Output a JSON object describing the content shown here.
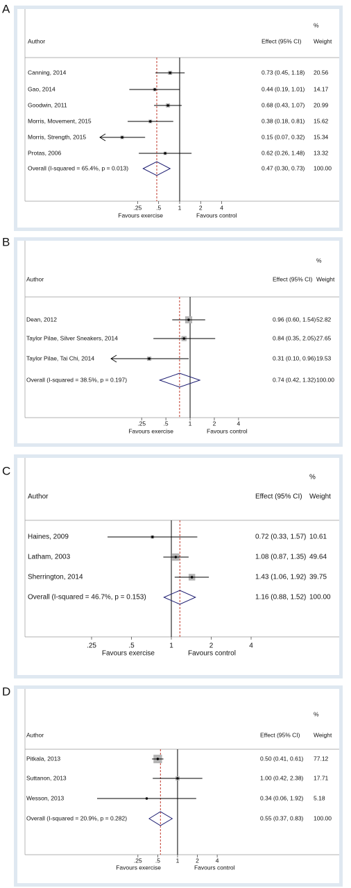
{
  "chart_data": [
    {
      "type": "forest",
      "panel": "A",
      "weight_header": "%",
      "weight_title": "Weight",
      "author_header": "Author",
      "effect_header": "Effect (95% CI)",
      "x_label_left": "Favours exercise",
      "x_label_right": "Favours control",
      "categories": [
        "Canning, 2014",
        "Gao, 2014",
        "Goodwin, 2011",
        "Morris, Movement, 2015",
        "Morris, Strength, 2015",
        "Protas, 2006"
      ],
      "values": [
        0.73,
        0.44,
        0.68,
        0.38,
        0.15,
        0.62
      ],
      "ci_low": [
        0.45,
        0.19,
        0.43,
        0.18,
        0.07,
        0.26
      ],
      "ci_high": [
        1.18,
        1.01,
        1.07,
        0.81,
        0.32,
        1.48
      ],
      "value_labels": [
        "0.73 (0.45, 1.18)",
        "0.44 (0.19, 1.01)",
        "0.68 (0.43, 1.07)",
        "0.38 (0.18, 0.81)",
        "0.15 (0.07, 0.32)",
        "0.62 (0.26, 1.48)"
      ],
      "weights": [
        20.56,
        14.17,
        20.99,
        15.62,
        15.34,
        13.32
      ],
      "overall_label": "Overall  (I-squared = 65.4%, p = 0.013)",
      "overall_value": 0.47,
      "overall_ci_low": 0.3,
      "overall_ci_high": 0.73,
      "overall_value_label": "0.47 (0.30, 0.73)",
      "overall_weight": 100,
      "overall_weight_label": "100.00",
      "log_x": true,
      "xlim": [
        0.072,
        13.9
      ],
      "null_line": 1,
      "xticks": [
        {
          "value": 0.25,
          "label": ".25"
        },
        {
          "value": 0.5,
          "label": ".5"
        },
        1,
        2,
        4
      ],
      "color": "#b4b4b4",
      "ci_color": "#000000",
      "diamond_color": "#1b1b70",
      "ref_line_color": "#c0392b"
    },
    {
      "type": "forest",
      "panel": "B",
      "weight_header": "%",
      "weight_title": "Weight",
      "author_header": "Author",
      "effect_header": "Effect (95% CI)",
      "x_label_left": "Favours exercise",
      "x_label_right": "Favours control",
      "categories": [
        "Dean, 2012",
        "Taylor Pilae, Silver Sneakers, 2014",
        "Taylor Pilae, Tai Chi, 2014"
      ],
      "values": [
        0.96,
        0.84,
        0.31
      ],
      "ci_low": [
        0.6,
        0.35,
        0.1
      ],
      "ci_high": [
        1.54,
        2.05,
        0.96
      ],
      "value_labels": [
        "0.96 (0.60, 1.54)",
        "0.84 (0.35, 2.05)",
        "0.31 (0.10, 0.96)"
      ],
      "weights": [
        52.82,
        27.65,
        19.53
      ],
      "overall_label": "Overall  (I-squared = 38.5%, p = 0.197)",
      "overall_value": 0.74,
      "overall_ci_low": 0.42,
      "overall_ci_high": 1.32,
      "overall_value_label": "0.74 (0.42, 1.32)",
      "overall_weight": 100,
      "overall_weight_label": "100.00",
      "log_x": true,
      "xlim": [
        0.104,
        9.6
      ],
      "null_line": 1,
      "xticks": [
        {
          "value": 0.25,
          "label": ".25"
        },
        {
          "value": 0.5,
          "label": ".5"
        },
        1,
        2,
        4
      ],
      "color": "#b4b4b4",
      "ci_color": "#000000",
      "diamond_color": "#1b1b70",
      "ref_line_color": "#c0392b"
    },
    {
      "type": "forest",
      "panel": "C",
      "weight_header": "%",
      "weight_title": "Weight",
      "author_header": "Author",
      "effect_header": "Effect (95% CI)",
      "x_label_left": "Favours exercise",
      "x_label_right": "Favours control",
      "categories": [
        "Haines, 2009",
        "Latham, 2003",
        "Sherrington, 2014"
      ],
      "values": [
        0.72,
        1.08,
        1.43
      ],
      "ci_low": [
        0.33,
        0.87,
        1.06
      ],
      "ci_high": [
        1.57,
        1.35,
        1.92
      ],
      "value_labels": [
        "0.72 (0.33, 1.57)",
        "1.08 (0.87, 1.35)",
        "1.43 (1.06, 1.92)"
      ],
      "weights": [
        10.61,
        49.64,
        39.75
      ],
      "overall_label": "Overall  (I-squared = 46.7%, p = 0.153)",
      "overall_value": 1.16,
      "overall_ci_low": 0.88,
      "overall_ci_high": 1.52,
      "overall_value_label": "1.16 (0.88, 1.52)",
      "overall_weight": 100,
      "overall_weight_label": "100.00",
      "log_x": true,
      "xlim": [
        0.25,
        4
      ],
      "null_line": 1,
      "xticks": [
        {
          "value": 0.25,
          "label": ".25"
        },
        {
          "value": 0.5,
          "label": ".5"
        },
        1,
        2,
        4
      ],
      "color": "#b4b4b4",
      "ci_color": "#000000",
      "diamond_color": "#1b1b70",
      "ref_line_color": "#c0392b"
    },
    {
      "type": "forest",
      "panel": "D",
      "weight_header": "%",
      "weight_title": "Weight",
      "author_header": "Author",
      "effect_header": "Effect (95% CI)",
      "x_label_left": "Favours exercise",
      "x_label_right": "Favours control",
      "categories": [
        "Pitkala, 2013",
        "Suttanon, 2013",
        "Wesson, 2013"
      ],
      "values": [
        0.5,
        1.0,
        0.34
      ],
      "ci_low": [
        0.41,
        0.42,
        0.06
      ],
      "ci_high": [
        0.61,
        2.38,
        1.92
      ],
      "value_labels": [
        "0.50 (0.41, 0.61)",
        "1.00 (0.42, 2.38)",
        "0.34 (0.06, 1.92)"
      ],
      "weights": [
        77.12,
        17.71,
        5.18
      ],
      "overall_label": "Overall  (I-squared = 20.9%, p = 0.282)",
      "overall_value": 0.55,
      "overall_ci_low": 0.37,
      "overall_ci_high": 0.83,
      "overall_value_label": "0.55 (0.37, 0.83)",
      "overall_weight": 100,
      "overall_weight_label": "100.00",
      "log_x": true,
      "xlim": [
        0.06,
        16.7
      ],
      "null_line": 1,
      "xticks": [
        {
          "value": 0.25,
          "label": ".25"
        },
        {
          "value": 0.5,
          "label": ".5"
        },
        1,
        2,
        4
      ],
      "color": "#b4b4b4",
      "ci_color": "#000000",
      "diamond_color": "#1b1b70",
      "ref_line_color": "#c0392b"
    }
  ]
}
